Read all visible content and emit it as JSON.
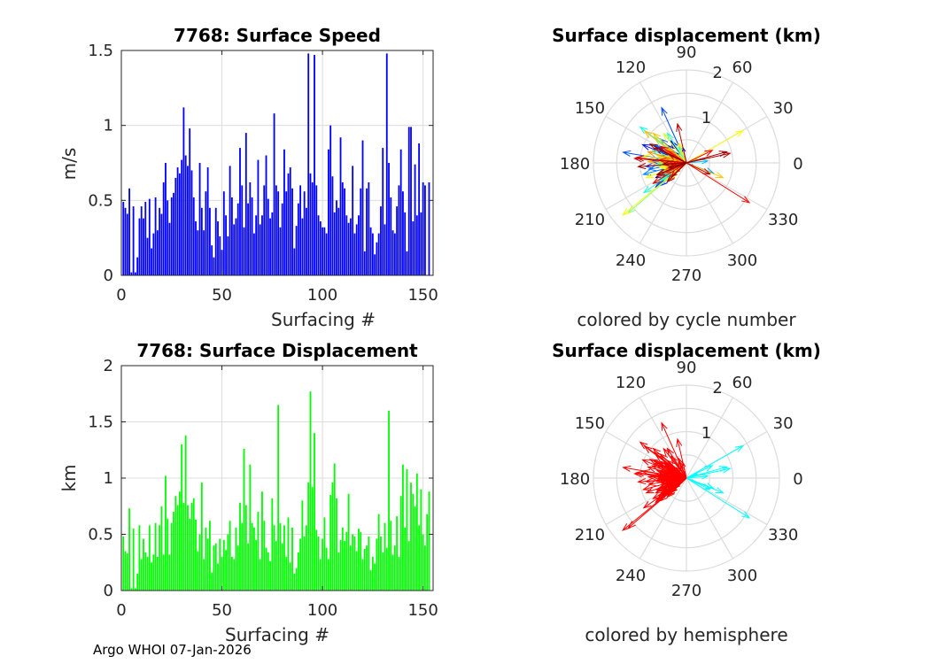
{
  "chart_data": [
    {
      "type": "bar",
      "title": "7768: Surface Speed",
      "xlabel": "Surfacing #",
      "ylabel": "m/s",
      "xlim": [
        0,
        155
      ],
      "ylim": [
        0,
        1.5
      ],
      "xticks": [
        "0",
        "50",
        "100",
        "150"
      ],
      "yticks": [
        "0",
        "0.5",
        "1",
        "1.5"
      ],
      "color": "#0000ff",
      "values": [
        0.49,
        0.45,
        0.41,
        0.58,
        0.02,
        0.46,
        0.02,
        0.12,
        0.38,
        0.46,
        0.38,
        0.49,
        0.25,
        0.51,
        0.18,
        0.28,
        0.52,
        0.3,
        0.45,
        0.41,
        0.62,
        0.75,
        0.5,
        0.35,
        0.52,
        0.55,
        0.65,
        0.72,
        0.68,
        0.77,
        1.12,
        0.8,
        0.73,
        0.98,
        0.7,
        0.52,
        0.36,
        0.3,
        0.75,
        0.45,
        0.3,
        0.56,
        0.72,
        0.45,
        0.2,
        0.12,
        0.45,
        0.36,
        0.26,
        0.17,
        0.56,
        0.4,
        0.26,
        0.73,
        0.52,
        0.34,
        0.38,
        0.48,
        0.85,
        0.6,
        0.32,
        0.95,
        0.48,
        0.62,
        0.52,
        0.28,
        0.4,
        0.77,
        0.34,
        0.4,
        0.6,
        0.8,
        0.51,
        0.38,
        0.42,
        1.08,
        0.6,
        0.56,
        0.32,
        0.48,
        0.84,
        0.56,
        0.68,
        0.72,
        0.58,
        0.18,
        0.33,
        0.48,
        0.6,
        0.38,
        0.56,
        0.45,
        1.48,
        0.68,
        0.62,
        1.47,
        0.6,
        0.4,
        0.36,
        0.32,
        0.32,
        0.28,
        0.84,
        1.0,
        0.66,
        0.42,
        0.5,
        0.45,
        0.92,
        0.62,
        0.58,
        0.4,
        0.35,
        0.38,
        0.73,
        0.28,
        0.34,
        0.4,
        0.58,
        0.9,
        0.16,
        0.58,
        0.62,
        0.32,
        0.28,
        0.14,
        0.22,
        0.28,
        0.46,
        0.85,
        0.34,
        1.48,
        0.75,
        0.52,
        0.3,
        0.28,
        0.46,
        0.6,
        0.84,
        0.56,
        0.42,
        0.16,
        0.99,
        0.99,
        0.36,
        0.74,
        0.4,
        0.88,
        0.42,
        0.62,
        0.6,
        0.0,
        0.62
      ]
    },
    {
      "type": "bar",
      "title": "7768: Surface Displacement",
      "xlabel": "Surfacing #",
      "ylabel": "km",
      "xlim": [
        0,
        155
      ],
      "ylim": [
        0,
        2
      ],
      "xticks": [
        "0",
        "50",
        "100",
        "150"
      ],
      "yticks": [
        "0",
        "0.5",
        "1",
        "1.5",
        "2"
      ],
      "color": "#00ff00",
      "values": [
        0.48,
        0.35,
        0.33,
        0.73,
        0.02,
        0.55,
        0.02,
        0.15,
        0.58,
        0.28,
        0.46,
        0.34,
        0.3,
        0.58,
        0.25,
        0.32,
        0.6,
        0.3,
        0.58,
        0.75,
        0.32,
        1.02,
        0.64,
        0.32,
        0.6,
        0.7,
        0.84,
        0.76,
        0.88,
        1.3,
        0.78,
        1.38,
        0.76,
        0.64,
        0.78,
        0.82,
        0.63,
        0.35,
        0.5,
        0.96,
        0.28,
        0.56,
        0.46,
        0.62,
        0.16,
        0.4,
        0.42,
        0.24,
        0.46,
        0.3,
        0.45,
        0.36,
        0.5,
        0.62,
        0.3,
        0.28,
        0.56,
        0.4,
        0.78,
        0.6,
        1.26,
        0.76,
        0.42,
        1.12,
        0.6,
        0.56,
        0.45,
        0.7,
        0.28,
        0.88,
        0.62,
        0.38,
        0.34,
        0.26,
        0.82,
        0.58,
        0.44,
        1.65,
        0.6,
        0.42,
        0.58,
        0.3,
        0.65,
        0.25,
        0.56,
        0.15,
        0.2,
        0.34,
        0.46,
        0.8,
        0.48,
        0.58,
        0.96,
        1.77,
        0.92,
        1.4,
        0.54,
        0.48,
        0.28,
        0.46,
        0.65,
        0.38,
        0.28,
        0.85,
        0.96,
        1.13,
        0.82,
        0.34,
        0.45,
        0.56,
        0.44,
        0.52,
        0.86,
        0.4,
        0.5,
        0.48,
        0.35,
        0.55,
        0.52,
        0.28,
        0.37,
        0.4,
        0.48,
        0.18,
        0.3,
        0.24,
        0.46,
        0.68,
        0.48,
        0.34,
        0.6,
        0.38,
        1.6,
        0.62,
        0.32,
        0.4,
        0.66,
        0.3,
        0.84,
        1.12,
        0.56,
        1.08,
        0.44,
        0.96,
        0.86,
        0.75,
        1.04,
        0.58,
        0.9,
        0.5,
        0.4,
        0.68,
        0.88
      ]
    },
    {
      "type": "polar",
      "title": "Surface displacement (km)",
      "subtitle": "colored by cycle number",
      "radial_max": 2,
      "radial_ticks": [
        "1",
        "2"
      ],
      "angle_ticks": [
        "0",
        "30",
        "60",
        "90",
        "120",
        "150",
        "180",
        "210",
        "240",
        "270",
        "300",
        "330"
      ],
      "color_mode": "cycle"
    },
    {
      "type": "polar",
      "title": "Surface displacement (km)",
      "subtitle": "colored by hemisphere",
      "radial_max": 2,
      "radial_ticks": [
        "1",
        "2"
      ],
      "angle_ticks": [
        "0",
        "30",
        "60",
        "90",
        "120",
        "150",
        "180",
        "210",
        "240",
        "270",
        "300",
        "330"
      ],
      "color_mode": "hemisphere",
      "colors": {
        "west": "#ff0000",
        "east": "#00ffff"
      }
    }
  ],
  "footer": "Argo WHOI 07-Jan-2026"
}
